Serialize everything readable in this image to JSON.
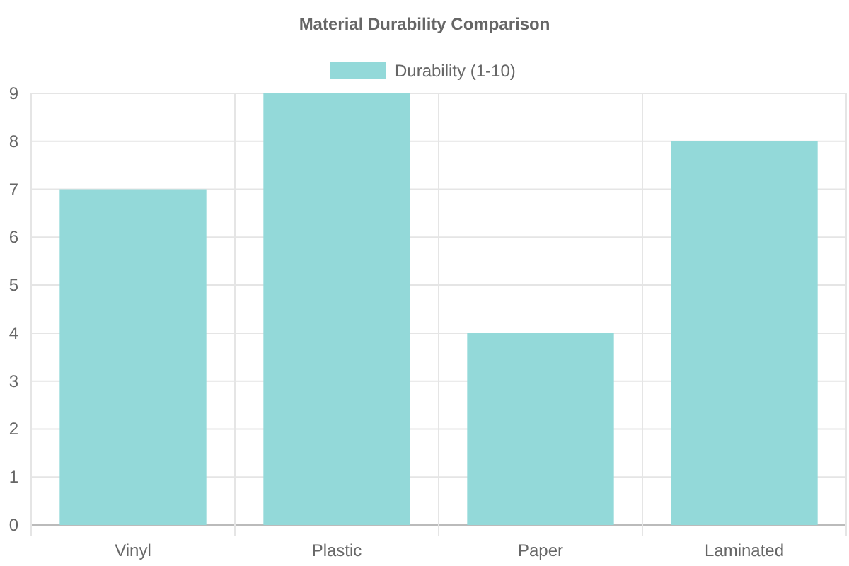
{
  "chart_data": {
    "type": "bar",
    "title": "Material Durability Comparison",
    "categories": [
      "Vinyl",
      "Plastic",
      "Paper",
      "Laminated"
    ],
    "series": [
      {
        "name": "Durability (1-10)",
        "color": "#93d9d9",
        "values": [
          7,
          9,
          4,
          8
        ]
      }
    ],
    "ylim": [
      0,
      9
    ],
    "yticks": [
      0,
      1,
      2,
      3,
      4,
      5,
      6,
      7,
      8,
      9
    ],
    "grid": true,
    "legend": "top"
  }
}
